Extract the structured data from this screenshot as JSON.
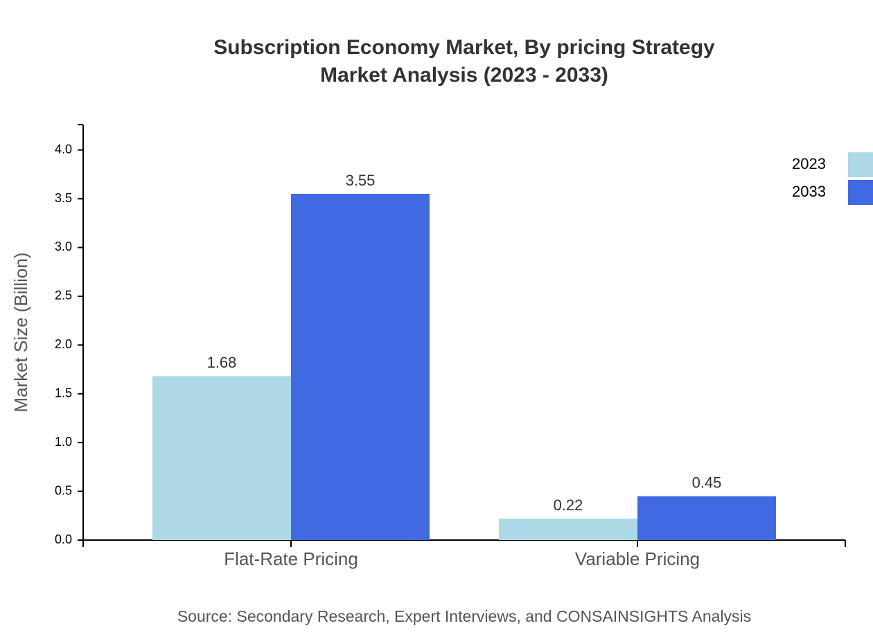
{
  "chart_data": {
    "type": "bar",
    "title": "Subscription Economy Market, By pricing Strategy",
    "subtitle": "Market Analysis (2023 - 2033)",
    "y_label": "Market Size (Billion)",
    "source": "Source: Secondary Research, Expert Interviews, and CONSAINSIGHTS Analysis",
    "categories": [
      "Flat-Rate Pricing",
      "Variable Pricing"
    ],
    "series": [
      {
        "name": "2023",
        "color": "#add8e6",
        "values": [
          1.68,
          0.22
        ]
      },
      {
        "name": "2033",
        "color": "#4169e1",
        "values": [
          3.55,
          0.45
        ]
      }
    ],
    "ylim": [
      0,
      4.26
    ],
    "yticks": [
      {
        "value": 0,
        "label": "0.0"
      },
      0.5,
      {
        "value": 1,
        "label": "1.0"
      },
      1.5,
      {
        "value": 2,
        "label": "2.0"
      },
      2.5,
      {
        "value": 3,
        "label": "3.0"
      },
      3.5,
      {
        "value": 4,
        "label": "4.0"
      }
    ],
    "grid": false,
    "legend": "top-right"
  }
}
